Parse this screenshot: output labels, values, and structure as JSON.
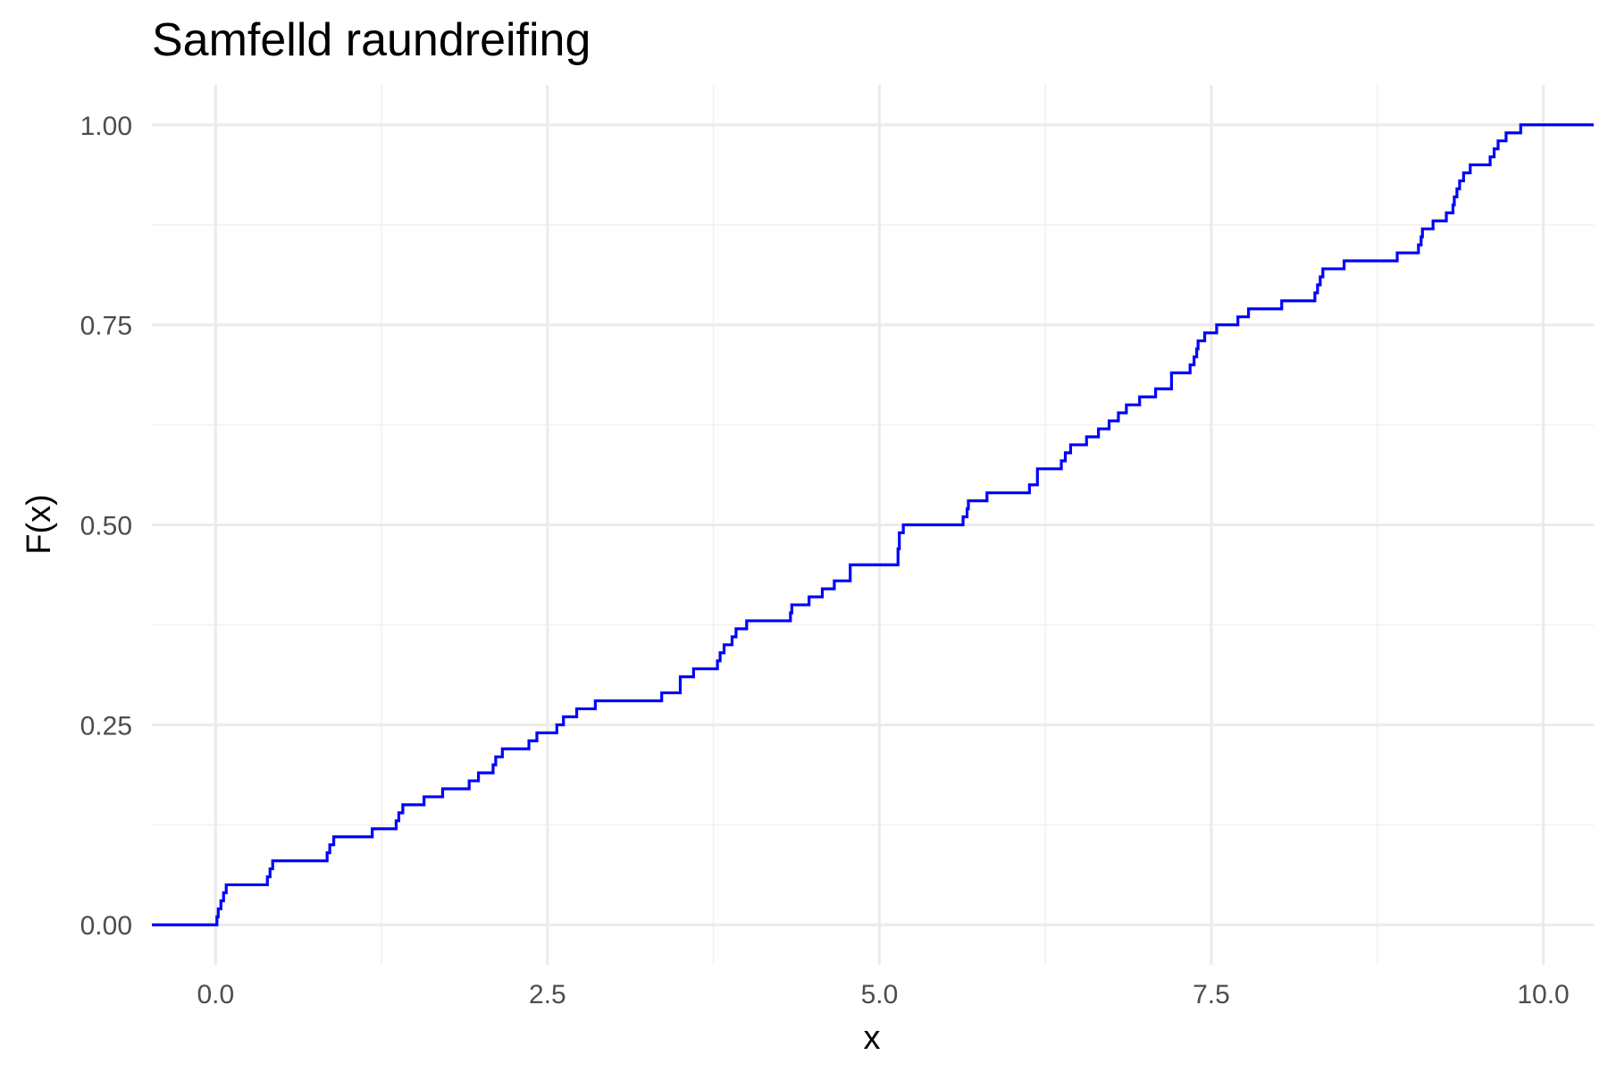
{
  "chart_data": {
    "type": "line",
    "step": true,
    "title": "Samfelld raundreifing",
    "xlabel": "x",
    "ylabel": "F(x)",
    "xlim": [
      -0.48,
      10.38
    ],
    "ylim": [
      -0.05,
      1.05
    ],
    "x_ticks": [
      0,
      2.5,
      5,
      7.5,
      10
    ],
    "x_tick_labels": [
      "0.0",
      "2.5",
      "5.0",
      "7.5",
      "10.0"
    ],
    "y_ticks": [
      0,
      0.25,
      0.5,
      0.75,
      1
    ],
    "y_tick_labels": [
      "0.00",
      "0.25",
      "0.50",
      "0.75",
      "1.00"
    ],
    "grid": true,
    "legend": "none",
    "series": [
      {
        "color": "#0000ff",
        "x": [
          -0.48,
          0.01,
          0.02,
          0.04,
          0.06,
          0.08,
          0.39,
          0.41,
          0.43,
          0.84,
          0.86,
          0.89,
          1.18,
          1.36,
          1.38,
          1.41,
          1.57,
          1.71,
          1.91,
          1.98,
          2.09,
          2.11,
          2.16,
          2.36,
          2.42,
          2.57,
          2.62,
          2.72,
          2.86,
          3.36,
          3.5,
          3.6,
          3.78,
          3.8,
          3.83,
          3.89,
          3.92,
          4.0,
          4.33,
          4.34,
          4.47,
          4.57,
          4.66,
          4.78,
          5.14,
          5.15,
          5.18,
          5.63,
          5.66,
          5.67,
          5.81,
          6.13,
          6.19,
          6.37,
          6.4,
          6.44,
          6.56,
          6.65,
          6.73,
          6.8,
          6.86,
          6.96,
          7.08,
          7.2,
          7.34,
          7.37,
          7.39,
          7.4,
          7.45,
          7.54,
          7.7,
          7.78,
          8.03,
          8.28,
          8.3,
          8.32,
          8.34,
          8.36,
          8.5,
          8.9,
          9.06,
          9.08,
          9.09,
          9.17,
          9.27,
          9.32,
          9.33,
          9.35,
          9.37,
          9.4,
          9.45,
          9.6,
          9.63,
          9.66,
          9.7,
          9.72,
          9.78,
          9.83,
          9.85,
          9.87,
          10.38
        ],
        "y": [
          0.0,
          0.01,
          0.02,
          0.03,
          0.04,
          0.05,
          0.06,
          0.07,
          0.08,
          0.09,
          0.1,
          0.11,
          0.12,
          0.13,
          0.14,
          0.15,
          0.16,
          0.17,
          0.18,
          0.19,
          0.2,
          0.21,
          0.22,
          0.23,
          0.24,
          0.25,
          0.26,
          0.27,
          0.28,
          0.29,
          0.31,
          0.32,
          0.33,
          0.34,
          0.35,
          0.36,
          0.37,
          0.38,
          0.39,
          0.4,
          0.41,
          0.42,
          0.43,
          0.45,
          0.47,
          0.49,
          0.5,
          0.51,
          0.52,
          0.53,
          0.54,
          0.55,
          0.57,
          0.58,
          0.59,
          0.6,
          0.61,
          0.62,
          0.63,
          0.64,
          0.65,
          0.66,
          0.67,
          0.69,
          0.7,
          0.71,
          0.72,
          0.73,
          0.74,
          0.75,
          0.76,
          0.77,
          0.78,
          0.79,
          0.8,
          0.81,
          0.82,
          0.82,
          0.83,
          0.84,
          0.85,
          0.86,
          0.87,
          0.88,
          0.89,
          0.9,
          0.91,
          0.92,
          0.93,
          0.94,
          0.95,
          0.96,
          0.97,
          0.98,
          0.98,
          0.99,
          0.99,
          1.0,
          1.0,
          1.0,
          1.0
        ]
      }
    ]
  }
}
